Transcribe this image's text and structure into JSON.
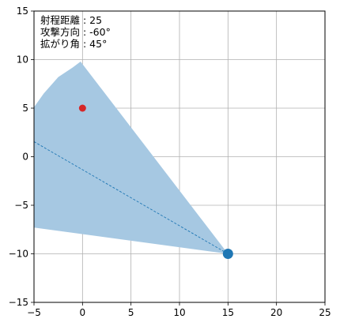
{
  "chart_data": {
    "type": "scatter",
    "title": "",
    "xlabel": "",
    "ylabel": "",
    "xlim": [
      -5,
      25
    ],
    "ylim": [
      -15,
      15
    ],
    "x_ticks": [
      -5,
      0,
      5,
      10,
      15,
      20,
      25
    ],
    "y_ticks": [
      -15,
      -10,
      -5,
      0,
      5,
      10,
      15
    ],
    "grid": true,
    "annotations": [
      "射程距離 : 25",
      "攻撃方向 : -60°",
      "拡がり角 : 45°"
    ],
    "annotation_position": "top-left",
    "range_distance": 25,
    "attack_direction_deg": -60,
    "spread_angle_deg": 45,
    "attacker": {
      "x": 15,
      "y": -10
    },
    "target": {
      "x": 0,
      "y": 5
    },
    "direction_line": {
      "x": [
        -5,
        15
      ],
      "y": [
        1.55,
        -10
      ]
    },
    "sector_polygon": [
      [
        15,
        -10
      ],
      [
        -5,
        -7.3
      ],
      [
        -5,
        5.1
      ],
      [
        -4,
        6.5
      ],
      [
        -2.5,
        8.2
      ],
      [
        -1,
        9.2
      ],
      [
        -0.2,
        9.8
      ]
    ],
    "colors": {
      "sector": "#a6c8e2",
      "direction_line": "#1f77b4",
      "attacker": "#1f77b4",
      "target": "#d62728",
      "grid": "#b0b0b0"
    }
  }
}
